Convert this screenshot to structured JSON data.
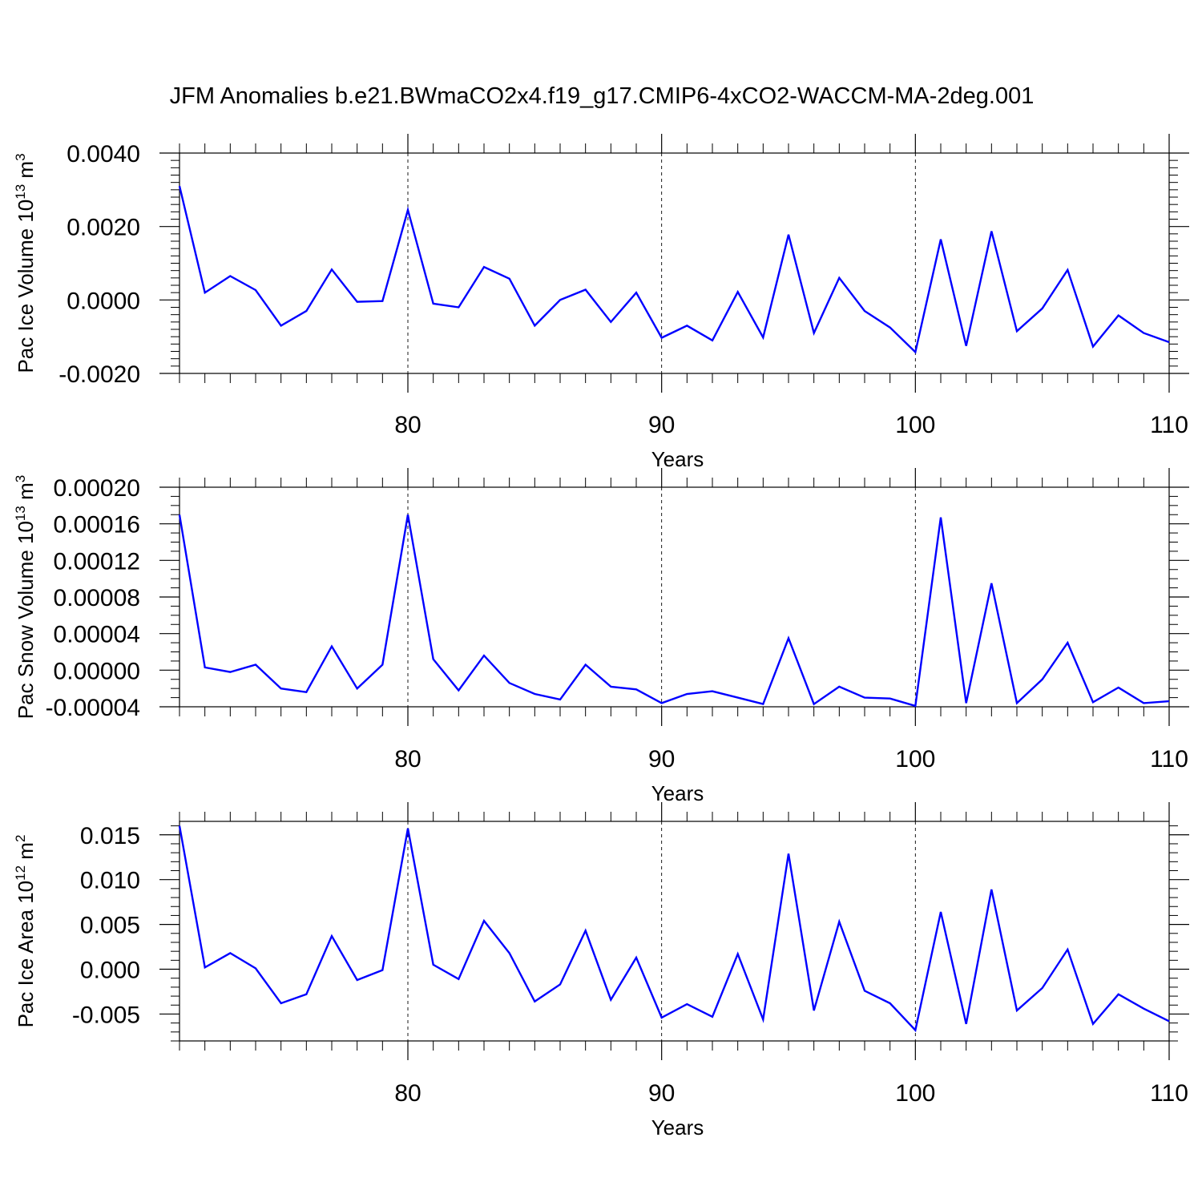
{
  "title": "JFM Anomalies b.e21.BWmaCO2x4.f19_g17.CMIP6-4xCO2-WACCM-MA-2deg.001",
  "colors": {
    "line": "#0000ff",
    "axis": "#000000",
    "grid": "#000000"
  },
  "chart_data": [
    {
      "type": "line",
      "ylabel": "Pac Ice Volume 10",
      "ylabel_exp": "13",
      "ylabel_unit": " m",
      "ylabel_unit_exp": "3",
      "xlabel": "Years",
      "xlim": [
        71,
        110
      ],
      "ylim": [
        -0.002,
        0.004
      ],
      "yticks": [
        -0.002,
        0.0,
        0.002,
        0.004
      ],
      "ytick_labels": [
        "-0.0020",
        "0.0000",
        "0.0020",
        "0.0040"
      ],
      "xticks": [
        80,
        90,
        100,
        110
      ],
      "xtick_labels": [
        "80",
        "90",
        "100",
        "110"
      ],
      "grid_x": [
        80,
        90,
        100
      ],
      "x": [
        71,
        72,
        73,
        74,
        75,
        76,
        77,
        78,
        79,
        80,
        81,
        82,
        83,
        84,
        85,
        86,
        87,
        88,
        89,
        90,
        91,
        92,
        93,
        94,
        95,
        96,
        97,
        98,
        99,
        100,
        101,
        102,
        103,
        104,
        105,
        106,
        107,
        108,
        109,
        110
      ],
      "y": [
        0.0031,
        0.0002,
        0.00065,
        0.00027,
        -0.0007,
        -0.0003,
        0.00083,
        -5e-05,
        -3e-05,
        0.00245,
        -0.0001,
        -0.0002,
        0.0009,
        0.00058,
        -0.0007,
        0.0,
        0.00028,
        -0.0006,
        0.0002,
        -0.00103,
        -0.0007,
        -0.0011,
        0.00022,
        -0.00102,
        0.00178,
        -0.0009,
        0.0006,
        -0.0003,
        -0.00075,
        -0.00142,
        0.00165,
        -0.00125,
        0.00187,
        -0.00085,
        -0.00023,
        0.00082,
        -0.00127,
        -0.00042,
        -0.0009,
        -0.00115
      ]
    },
    {
      "type": "line",
      "ylabel": "Pac Snow Volume 10",
      "ylabel_exp": "13",
      "ylabel_unit": " m",
      "ylabel_unit_exp": "3",
      "xlabel": "Years",
      "xlim": [
        71,
        110
      ],
      "ylim": [
        -4e-05,
        0.0002
      ],
      "yticks": [
        -4e-05,
        0.0,
        4e-05,
        8e-05,
        0.00012,
        0.00016,
        0.0002
      ],
      "ytick_labels": [
        "-0.00004",
        "0.00000",
        "0.00004",
        "0.00008",
        "0.00012",
        "0.00016",
        "0.00020"
      ],
      "xticks": [
        80,
        90,
        100,
        110
      ],
      "xtick_labels": [
        "80",
        "90",
        "100",
        "110"
      ],
      "grid_x": [
        80,
        90,
        100
      ],
      "x": [
        71,
        72,
        73,
        74,
        75,
        76,
        77,
        78,
        79,
        80,
        81,
        82,
        83,
        84,
        85,
        86,
        87,
        88,
        89,
        90,
        91,
        92,
        93,
        94,
        95,
        96,
        97,
        98,
        99,
        100,
        101,
        102,
        103,
        104,
        105,
        106,
        107,
        108,
        109,
        110
      ],
      "y": [
        0.00017,
        3e-06,
        -2e-06,
        6e-06,
        -2e-05,
        -2.4e-05,
        2.6e-05,
        -2e-05,
        6e-06,
        0.00017,
        1.2e-05,
        -2.2e-05,
        1.6e-05,
        -1.4e-05,
        -2.6e-05,
        -3.2e-05,
        6e-06,
        -1.8e-05,
        -2.1e-05,
        -3.6e-05,
        -2.6e-05,
        -2.3e-05,
        -3e-05,
        -3.7e-05,
        3.5e-05,
        -3.7e-05,
        -1.8e-05,
        -3e-05,
        -3.1e-05,
        -3.9e-05,
        0.000167,
        -3.6e-05,
        9.5e-05,
        -3.6e-05,
        -1e-05,
        3e-05,
        -3.5e-05,
        -1.9e-05,
        -3.6e-05,
        -3.4e-05
      ]
    },
    {
      "type": "line",
      "ylabel": "Pac Ice Area 10",
      "ylabel_exp": "12",
      "ylabel_unit": " m",
      "ylabel_unit_exp": "2",
      "xlabel": "Years",
      "xlim": [
        71,
        110
      ],
      "ylim": [
        -0.008,
        0.0165
      ],
      "yticks": [
        -0.005,
        0.0,
        0.005,
        0.01,
        0.015
      ],
      "ytick_labels": [
        "-0.005",
        "0.000",
        "0.005",
        "0.010",
        "0.015"
      ],
      "xticks": [
        80,
        90,
        100,
        110
      ],
      "xtick_labels": [
        "80",
        "90",
        "100",
        "110"
      ],
      "grid_x": [
        80,
        90,
        100
      ],
      "x": [
        71,
        72,
        73,
        74,
        75,
        76,
        77,
        78,
        79,
        80,
        81,
        82,
        83,
        84,
        85,
        86,
        87,
        88,
        89,
        90,
        91,
        92,
        93,
        94,
        95,
        96,
        97,
        98,
        99,
        100,
        101,
        102,
        103,
        104,
        105,
        106,
        107,
        108,
        109,
        110
      ],
      "y": [
        0.016,
        0.0002,
        0.0018,
        0.0001,
        -0.0038,
        -0.0028,
        0.0037,
        -0.0012,
        -0.0001,
        0.0157,
        0.0005,
        -0.0011,
        0.0054,
        0.0018,
        -0.0036,
        -0.0017,
        0.0043,
        -0.0034,
        0.0013,
        -0.0054,
        -0.0039,
        -0.0053,
        0.0017,
        -0.0056,
        0.0129,
        -0.0046,
        0.0053,
        -0.0024,
        -0.0038,
        -0.0068,
        0.0064,
        -0.0061,
        0.0089,
        -0.0046,
        -0.0021,
        0.0022,
        -0.0061,
        -0.0028,
        -0.0044,
        -0.0058
      ]
    }
  ]
}
